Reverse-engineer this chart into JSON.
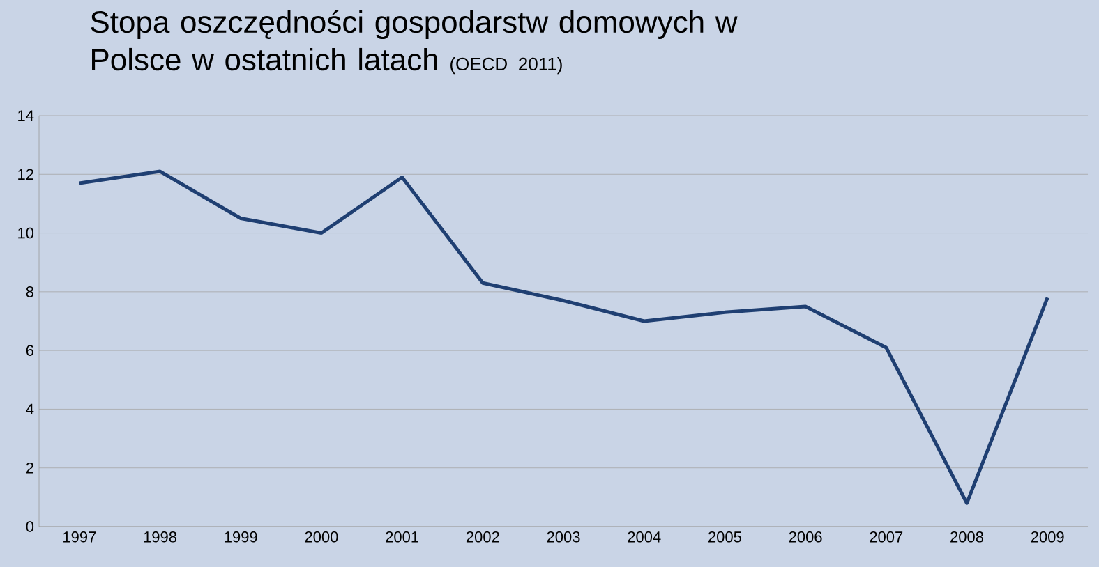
{
  "chart_data": {
    "type": "line",
    "title": "Stopa oszczędności gospodarstw domowych w Polsce w ostatnich latach",
    "subtitle": "(OECD 2011)",
    "categories": [
      "1997",
      "1998",
      "1999",
      "2000",
      "2001",
      "2002",
      "2003",
      "2004",
      "2005",
      "2006",
      "2007",
      "2008",
      "2009"
    ],
    "values": [
      11.7,
      12.1,
      10.5,
      10.0,
      11.9,
      8.3,
      7.7,
      7.0,
      7.3,
      7.5,
      6.1,
      0.8,
      7.8
    ],
    "color": "#1f3f72",
    "ylim": [
      0,
      14
    ],
    "yticks": [
      0,
      2,
      4,
      6,
      8,
      10,
      12,
      14
    ],
    "grid": "y",
    "marker": "none",
    "line_style": "solid"
  }
}
